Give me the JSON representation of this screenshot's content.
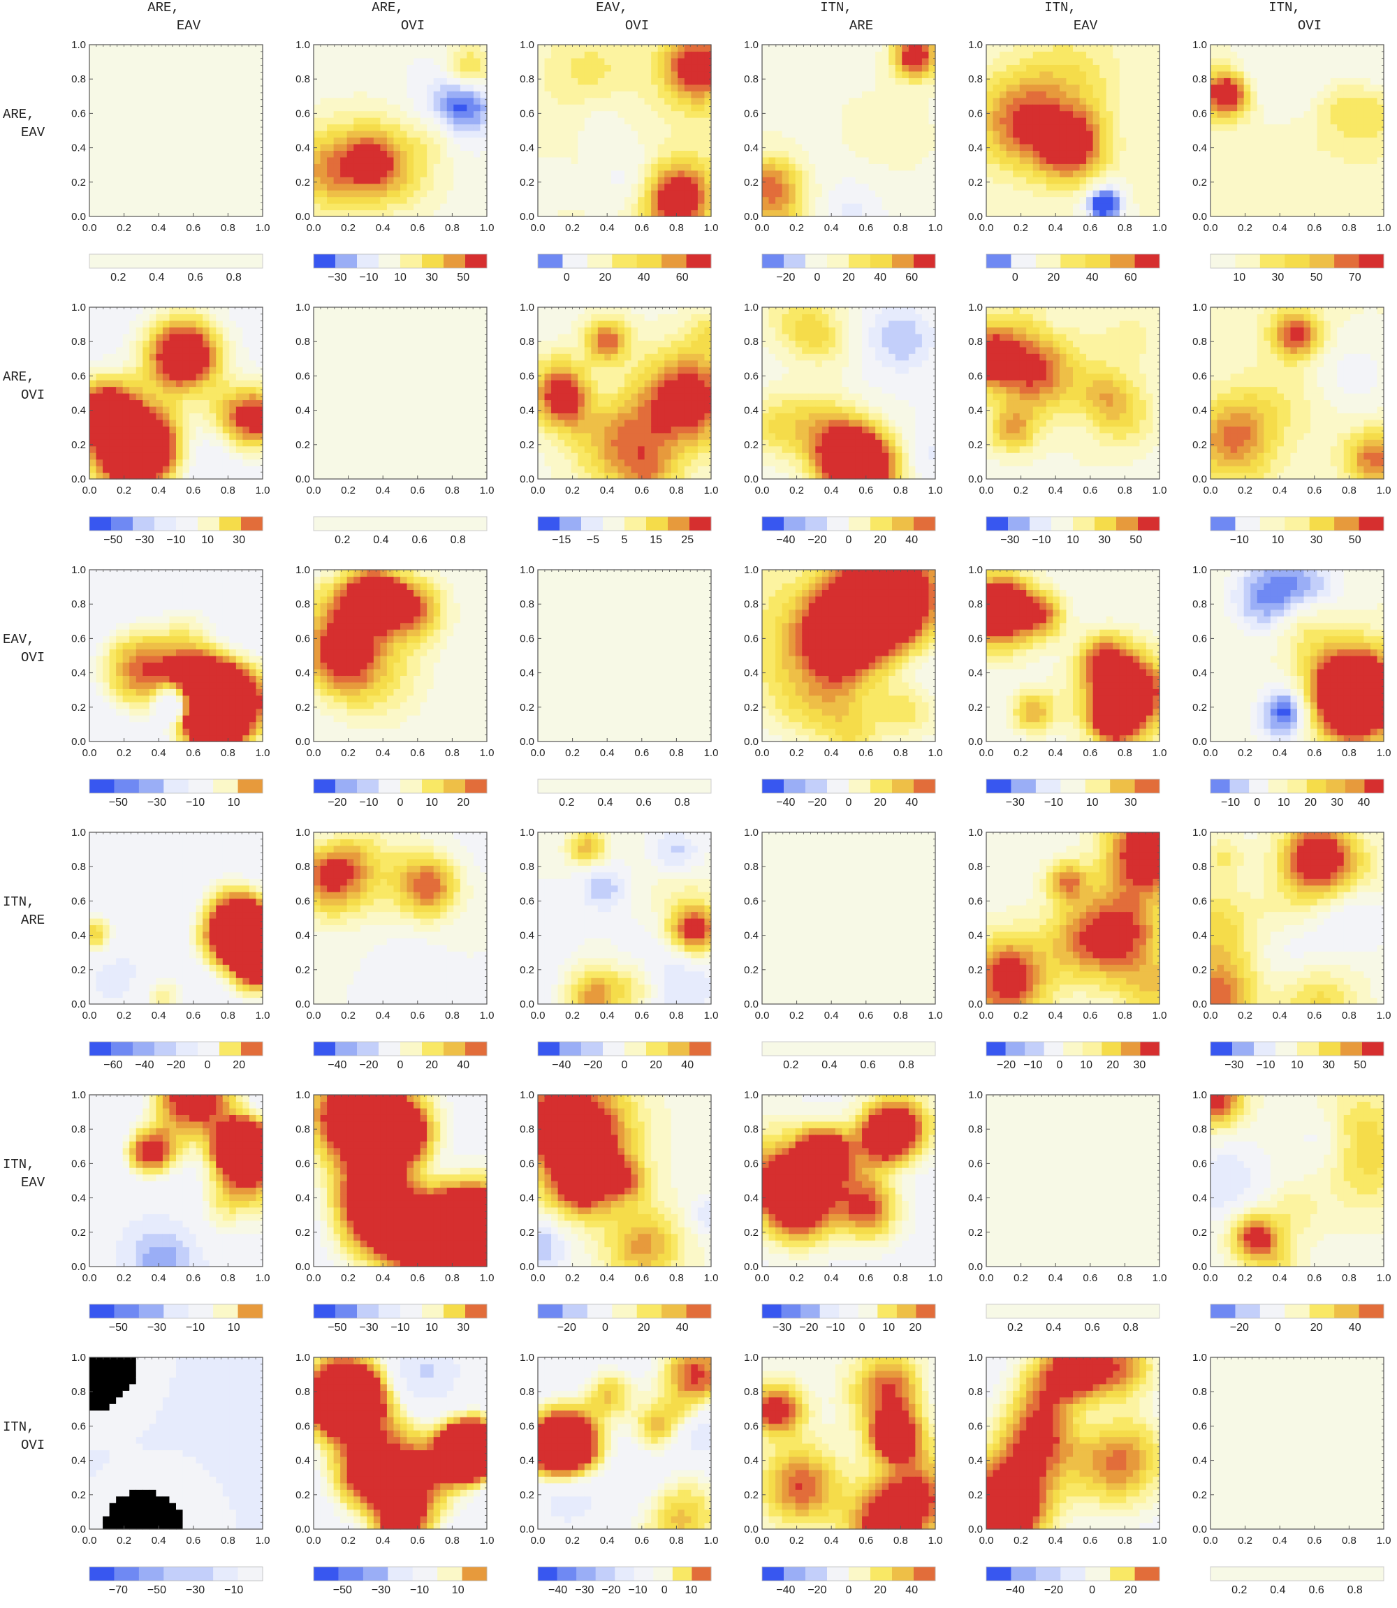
{
  "figure": {
    "pairs": [
      "ARE,\nEAV",
      "ARE,\nOVI",
      "EAV,\nOVI",
      "ITN,\nARE",
      "ITN,\nEAV",
      "ITN,\nOVI"
    ],
    "axis_ticks": [
      "0.0",
      "0.2",
      "0.4",
      "0.6",
      "0.8",
      "1.0"
    ],
    "colors": {
      "blue_scale": [
        "#3857f0",
        "#6f89f3",
        "#9aaef6",
        "#c3cffa",
        "#e6ebfc",
        "#f3f4f8"
      ],
      "warm_scale": [
        "#f7f8e6",
        "#fbf8c8",
        "#fcf3a0",
        "#f9e865",
        "#f5dc4a",
        "#eebf47",
        "#e79a3c",
        "#e26d3a",
        "#d62f2f"
      ],
      "axis": "#555555",
      "text": "#222222"
    }
  },
  "chart_data": {
    "type": "heatmap",
    "layout": "6x6 grid of filled contour plots; rows and columns are the pairs; each panel has its own color legend",
    "x_range": [
      0,
      1
    ],
    "y_range": [
      0,
      1
    ],
    "panels": [
      [
        {
          "ticks": [
            "0.2",
            "0.4",
            "0.6",
            "0.8"
          ],
          "scale": "diag"
        },
        {
          "ticks": [
            "−30",
            "−10",
            "10",
            "30",
            "50"
          ],
          "scale": [
            -40,
            60
          ]
        },
        {
          "ticks": [
            "0",
            "20",
            "40",
            "60"
          ],
          "scale": [
            -20,
            70
          ]
        },
        {
          "ticks": [
            "−20",
            "0",
            "20",
            "40",
            "60"
          ],
          "scale": [
            -30,
            70
          ]
        },
        {
          "ticks": [
            "0",
            "20",
            "40",
            "60"
          ],
          "scale": [
            -20,
            70
          ]
        },
        {
          "ticks": [
            "10",
            "30",
            "50",
            "70"
          ],
          "scale": [
            0,
            80
          ]
        }
      ],
      [
        {
          "ticks": [
            "−50",
            "−30",
            "−10",
            "10",
            "30"
          ],
          "scale": [
            -60,
            40
          ]
        },
        {
          "ticks": [
            "0.2",
            "0.4",
            "0.6",
            "0.8"
          ],
          "scale": "diag"
        },
        {
          "ticks": [
            "−15",
            "−5",
            "5",
            "15",
            "25"
          ],
          "scale": [
            -20,
            30
          ]
        },
        {
          "ticks": [
            "−40",
            "−20",
            "0",
            "20",
            "40"
          ],
          "scale": [
            -50,
            50
          ]
        },
        {
          "ticks": [
            "−30",
            "−10",
            "10",
            "30",
            "50"
          ],
          "scale": [
            -40,
            60
          ]
        },
        {
          "ticks": [
            "−10",
            "10",
            "30",
            "50"
          ],
          "scale": [
            -20,
            60
          ]
        }
      ],
      [
        {
          "ticks": [
            "−50",
            "−30",
            "−10",
            "10"
          ],
          "scale": [
            -60,
            20
          ]
        },
        {
          "ticks": [
            "−20",
            "−10",
            "0",
            "10",
            "20"
          ],
          "scale": [
            -25,
            25
          ]
        },
        {
          "ticks": [
            "0.2",
            "0.4",
            "0.6",
            "0.8"
          ],
          "scale": "diag"
        },
        {
          "ticks": [
            "−40",
            "−20",
            "0",
            "20",
            "40"
          ],
          "scale": [
            -50,
            50
          ]
        },
        {
          "ticks": [
            "−30",
            "−10",
            "10",
            "30"
          ],
          "scale": [
            -40,
            40
          ]
        },
        {
          "ticks": [
            "−10",
            "0",
            "10",
            "20",
            "30",
            "40"
          ],
          "scale": [
            -20,
            50
          ]
        }
      ],
      [
        {
          "ticks": [
            "−60",
            "−40",
            "−20",
            "0",
            "20"
          ],
          "scale": [
            -70,
            30
          ]
        },
        {
          "ticks": [
            "−40",
            "−20",
            "0",
            "20",
            "40"
          ],
          "scale": [
            -50,
            50
          ]
        },
        {
          "ticks": [
            "−40",
            "−20",
            "0",
            "20",
            "40"
          ],
          "scale": [
            -50,
            50
          ]
        },
        {
          "ticks": [
            "0.2",
            "0.4",
            "0.6",
            "0.8"
          ],
          "scale": "diag"
        },
        {
          "ticks": [
            "−20",
            "−10",
            "0",
            "10",
            "20",
            "30"
          ],
          "scale": [
            -30,
            40
          ]
        },
        {
          "ticks": [
            "−30",
            "−10",
            "10",
            "30",
            "50"
          ],
          "scale": [
            -40,
            60
          ]
        }
      ],
      [
        {
          "ticks": [
            "−50",
            "−30",
            "−10",
            "10"
          ],
          "scale": [
            -60,
            20
          ]
        },
        {
          "ticks": [
            "−50",
            "−30",
            "−10",
            "10",
            "30"
          ],
          "scale": [
            -60,
            40
          ]
        },
        {
          "ticks": [
            "−20",
            "0",
            "20",
            "40"
          ],
          "scale": [
            -30,
            50
          ]
        },
        {
          "ticks": [
            "−30",
            "−20",
            "−10",
            "0",
            "10",
            "20"
          ],
          "scale": [
            -40,
            30
          ]
        },
        {
          "ticks": [
            "0.2",
            "0.4",
            "0.6",
            "0.8"
          ],
          "scale": "diag"
        },
        {
          "ticks": [
            "−20",
            "0",
            "20",
            "40"
          ],
          "scale": [
            -30,
            50
          ]
        }
      ],
      [
        {
          "ticks": [
            "−70",
            "−50",
            "−30",
            "−10"
          ],
          "scale": [
            -80,
            0
          ]
        },
        {
          "ticks": [
            "−50",
            "−30",
            "−10",
            "10"
          ],
          "scale": [
            -60,
            20
          ]
        },
        {
          "ticks": [
            "−40",
            "−30",
            "−20",
            "−10",
            "0",
            "10"
          ],
          "scale": [
            -50,
            20
          ]
        },
        {
          "ticks": [
            "−40",
            "−20",
            "0",
            "20",
            "40"
          ],
          "scale": [
            -50,
            50
          ]
        },
        {
          "ticks": [
            "−40",
            "−20",
            "0",
            "20"
          ],
          "scale": [
            -50,
            30
          ]
        },
        {
          "ticks": [
            "0.2",
            "0.4",
            "0.6",
            "0.8"
          ],
          "scale": "diag"
        }
      ]
    ]
  }
}
